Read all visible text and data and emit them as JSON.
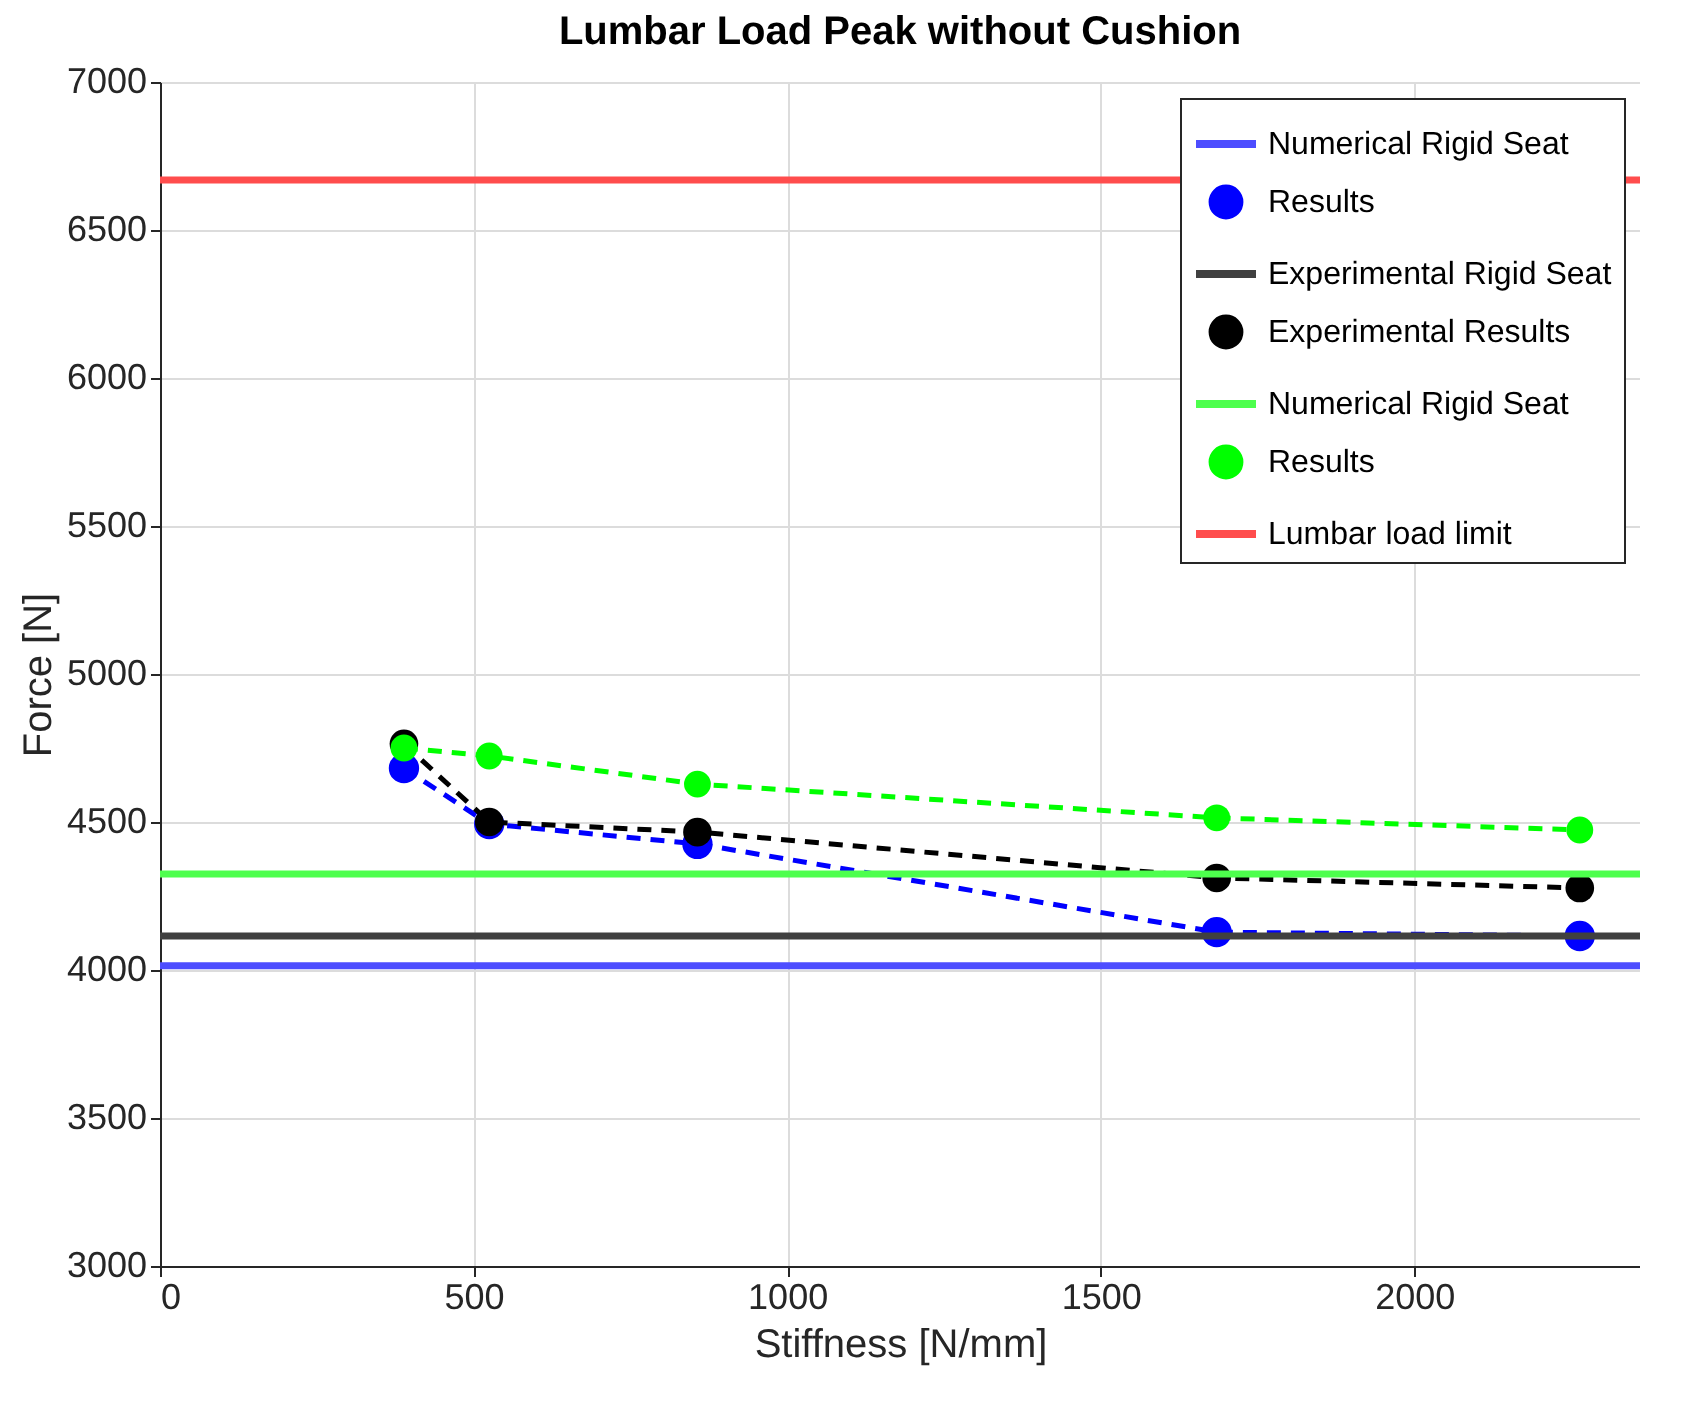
{
  "chart_data": {
    "type": "line",
    "title": "Lumbar Load Peak without Cushion",
    "xlabel": "Stiffness [N/mm]",
    "ylabel": "Force [N]",
    "xlim": [
      0,
      2360
    ],
    "xticks": [
      0,
      500,
      1000,
      1500,
      2000
    ],
    "ylim": [
      3000,
      7000
    ],
    "yticks": [
      3000,
      3500,
      4000,
      4500,
      5000,
      5500,
      6000,
      6500,
      7000
    ],
    "grid": true,
    "legend": "top right",
    "series": [
      {
        "name": "Numerical Rigid Seat",
        "color": "#4d4dff",
        "x": [
          0,
          2360
        ],
        "values": [
          4014,
          4014
        ],
        "marker": "none",
        "line_style": "solid"
      },
      {
        "name": "Results",
        "color": "#0000ff",
        "x": [
          389,
          525,
          857,
          1685,
          2264
        ],
        "values": [
          4682,
          4493,
          4426,
          4128,
          4115
        ],
        "marker": "circle",
        "line_style": "dashed"
      },
      {
        "name": "Experimental Rigid Seat",
        "color": "#404040",
        "x": [
          0,
          2360
        ],
        "values": [
          4115,
          4115
        ],
        "marker": "none",
        "line_style": "solid"
      },
      {
        "name": "Experimental Results",
        "color": "#000000",
        "x": [
          389,
          525,
          857,
          1685,
          2264
        ],
        "values": [
          4764,
          4500,
          4466,
          4311,
          4277
        ],
        "marker": "circle",
        "line_style": "dashed"
      },
      {
        "name": "Numerical Rigid Seat",
        "color": "#4dff4d",
        "x": [
          0,
          2360
        ],
        "values": [
          4324,
          4324
        ],
        "marker": "none",
        "line_style": "solid"
      },
      {
        "name": "Results",
        "color": "#00ff00",
        "x": [
          389,
          525,
          857,
          1685,
          2264
        ],
        "values": [
          4750,
          4723,
          4628,
          4514,
          4473
        ],
        "marker": "circle",
        "line_style": "dashed"
      },
      {
        "name": "Lumbar load limit",
        "color": "#ff4d4d",
        "x": [
          0,
          2360
        ],
        "values": [
          6669,
          6669
        ],
        "marker": "none",
        "line_style": "solid"
      }
    ]
  }
}
